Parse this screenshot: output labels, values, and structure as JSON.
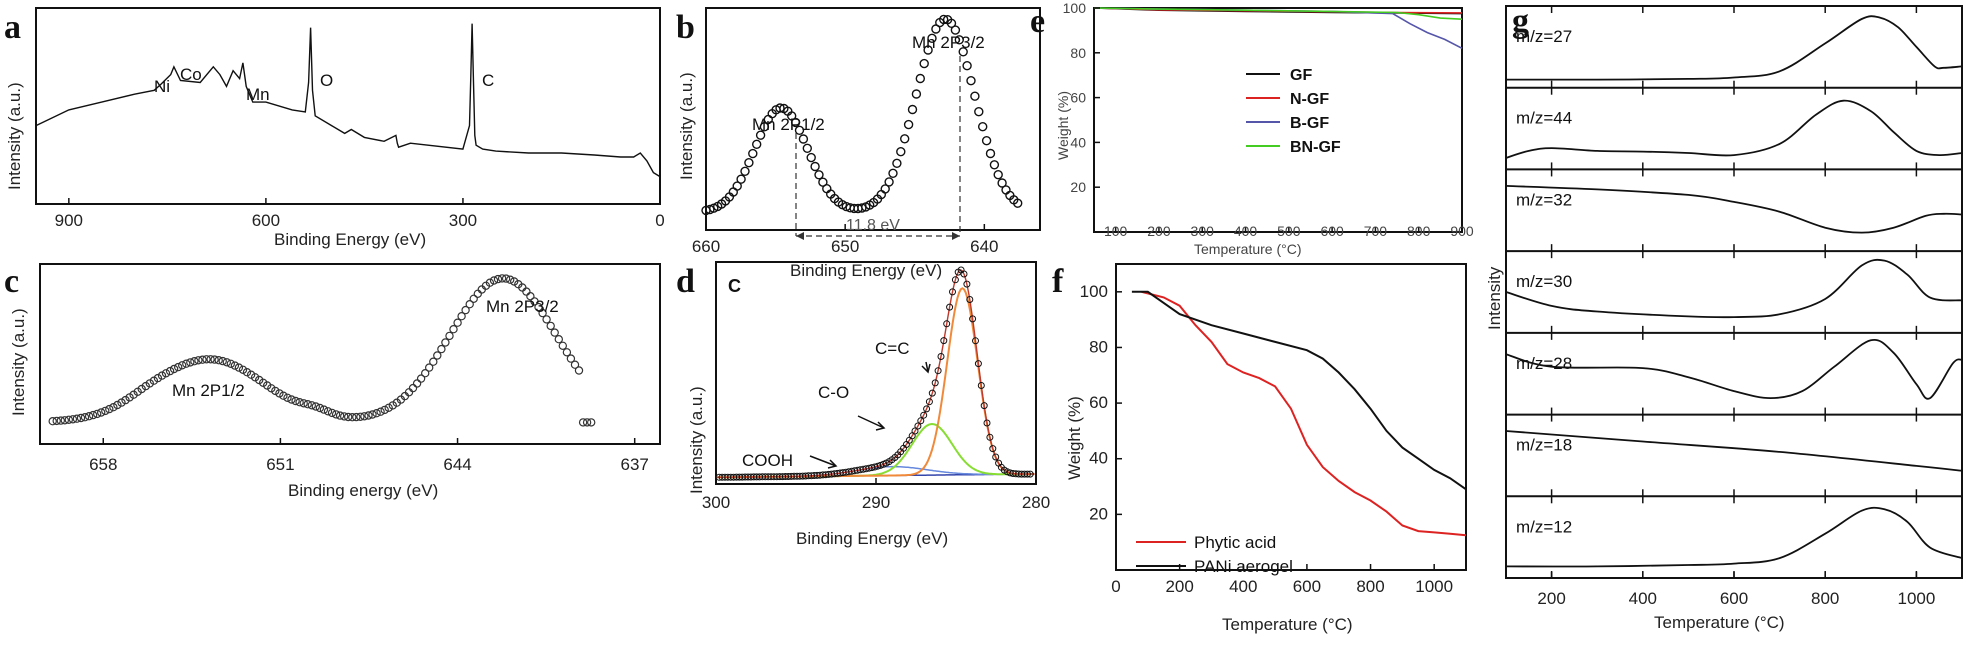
{
  "panels": {
    "a": {
      "letter": "a",
      "ylabel": "Intensity (a.u.)",
      "xlabel": "Binding Energy (eV)",
      "xticks": [
        "900",
        "600",
        "300",
        "0"
      ],
      "annotations": [
        "Ni",
        "Co",
        "Mn",
        "O",
        "C"
      ]
    },
    "b": {
      "letter": "b",
      "ylabel": "Intensity (a.u.)",
      "xlabel": "Binding Energy (eV)",
      "xticks": [
        "660",
        "650",
        "640"
      ],
      "peak1": "Mn 2P1/2",
      "peak2": "Mn 2P3/2",
      "split": "11.8 eV"
    },
    "c": {
      "letter": "c",
      "ylabel": "Intensity (a.u.)",
      "xlabel": "Binding energy (eV)",
      "xticks": [
        "658",
        "651",
        "644",
        "637"
      ],
      "peak1": "Mn 2P1/2",
      "peak2": "Mn 2P3/2"
    },
    "d": {
      "letter": "d",
      "ylabel": "Intensity (a.u.)",
      "xlabel": "Binding Energy (eV)",
      "xticks": [
        "300",
        "290",
        "280"
      ],
      "corner": "C",
      "labels": [
        "C=C",
        "C-O",
        "COOH"
      ]
    },
    "e": {
      "letter": "e",
      "ylabel": "Weight (%)",
      "xlabel": "Temperature (°C)",
      "xticks": [
        "100",
        "200",
        "300",
        "400",
        "500",
        "600",
        "700",
        "800",
        "900"
      ],
      "yticks": [
        "20",
        "40",
        "60",
        "80",
        "100"
      ],
      "legend": [
        "GF",
        "N-GF",
        "B-GF",
        "BN-GF"
      ]
    },
    "f": {
      "letter": "f",
      "ylabel": "Weight (%)",
      "xlabel": "Temperature (°C)",
      "xticks": [
        "0",
        "200",
        "400",
        "600",
        "800",
        "1000"
      ],
      "yticks": [
        "20",
        "40",
        "60",
        "80",
        "100"
      ],
      "legend": [
        "Phytic acid",
        "PANi aerogel"
      ]
    },
    "g": {
      "letter": "g",
      "ylabel": "Intensity",
      "xlabel": "Temperature (°C)",
      "xticks": [
        "200",
        "400",
        "600",
        "800",
        "1000"
      ],
      "rows": [
        "m/z=27",
        "m/z=44",
        "m/z=32",
        "m/z=30",
        "m/z=28",
        "m/z=18",
        "m/z=12"
      ]
    }
  },
  "chart_data": [
    {
      "id": "a",
      "type": "line",
      "xlabel": "Binding Energy (eV)",
      "ylabel": "Intensity (a.u.)",
      "xlim": [
        950,
        0
      ],
      "ylim": [
        0,
        100
      ],
      "x": [
        950,
        900,
        850,
        800,
        770,
        760,
        745,
        740,
        730,
        700,
        680,
        670,
        660,
        650,
        640,
        635,
        630,
        620,
        600,
        560,
        540,
        535,
        532,
        529,
        525,
        500,
        480,
        470,
        450,
        420,
        402,
        400,
        398,
        380,
        300,
        290,
        288,
        286,
        284,
        282,
        280,
        270,
        250,
        200,
        150,
        100,
        60,
        40,
        30,
        20,
        10,
        0
      ],
      "y": [
        40,
        48,
        52,
        56,
        58,
        61,
        66,
        70,
        63,
        62,
        70,
        66,
        60,
        68,
        64,
        72,
        60,
        52,
        52,
        48,
        47,
        62,
        90,
        58,
        45,
        40,
        36,
        38,
        34,
        32,
        35,
        31,
        29,
        31,
        28,
        40,
        65,
        92,
        62,
        35,
        30,
        28,
        27,
        26,
        26,
        25,
        24,
        24,
        26,
        22,
        16,
        14
      ]
    },
    {
      "id": "b",
      "type": "scatter",
      "xlabel": "Binding Energy (eV)",
      "ylabel": "Intensity (a.u.)",
      "xlim": [
        660,
        636
      ],
      "ylim": [
        0,
        100
      ],
      "peaks": [
        {
          "label": "Mn 2P1/2",
          "x": 654.6,
          "y": 51
        },
        {
          "label": "Mn 2P3/2",
          "x": 642.8,
          "y": 90
        }
      ],
      "splitting_eV": 11.8
    },
    {
      "id": "c",
      "type": "scatter",
      "xlabel": "Binding energy (eV)",
      "ylabel": "Intensity (a.u.)",
      "xlim": [
        660.5,
        636
      ],
      "ylim": [
        0,
        100
      ],
      "peaks": [
        {
          "label": "Mn 2P1/2",
          "x": 653.8,
          "y": 52
        },
        {
          "label": "Mn 2P3/2",
          "x": 642.2,
          "y": 97
        }
      ]
    },
    {
      "id": "d",
      "type": "line",
      "xlabel": "Binding Energy (eV)",
      "ylabel": "Intensity (a.u.)",
      "xlim": [
        300,
        280
      ],
      "ylim": [
        0,
        100
      ],
      "series": [
        {
          "name": "C=C",
          "center": 284.6,
          "height": 88
        },
        {
          "name": "C-O",
          "center": 286.5,
          "height": 25
        },
        {
          "name": "COOH",
          "center": 289.0,
          "height": 4
        }
      ]
    },
    {
      "id": "e",
      "type": "line",
      "xlabel": "Temperature (°C)",
      "ylabel": "Weight (%)",
      "xlim": [
        50,
        900
      ],
      "ylim": [
        0,
        100
      ],
      "series": [
        {
          "name": "GF",
          "color": "#111111",
          "x": [
            50,
            200,
            400,
            600,
            750,
            900
          ],
          "y": [
            100,
            99,
            98.5,
            98,
            97.8,
            97.5
          ]
        },
        {
          "name": "N-GF",
          "color": "#dd2222",
          "x": [
            50,
            200,
            400,
            600,
            750,
            900
          ],
          "y": [
            100,
            99.2,
            98.8,
            98.3,
            98,
            97.8
          ]
        },
        {
          "name": "B-GF",
          "color": "#5555aa",
          "x": [
            50,
            200,
            400,
            600,
            740,
            780,
            820,
            860,
            900
          ],
          "y": [
            100,
            99.5,
            99,
            98.5,
            97.5,
            93,
            89,
            86,
            82
          ]
        },
        {
          "name": "BN-GF",
          "color": "#44cc22",
          "x": [
            50,
            200,
            400,
            600,
            750,
            800,
            850,
            900
          ],
          "y": [
            100,
            99.5,
            99,
            98.5,
            98,
            97,
            95.5,
            95
          ]
        }
      ]
    },
    {
      "id": "f",
      "type": "line",
      "xlabel": "Temperature (°C)",
      "ylabel": "Weight (%)",
      "xlim": [
        0,
        1100
      ],
      "ylim": [
        0,
        110
      ],
      "series": [
        {
          "name": "Phytic acid",
          "color": "#dd2222",
          "x": [
            80,
            150,
            200,
            250,
            300,
            350,
            400,
            450,
            500,
            550,
            600,
            650,
            700,
            750,
            800,
            850,
            900,
            950,
            1000,
            1050,
            1100
          ],
          "y": [
            100,
            98,
            95,
            88,
            82,
            74,
            71,
            69,
            66,
            58,
            45,
            37,
            32,
            28,
            25,
            21,
            16,
            14,
            13.5,
            13,
            12.5
          ]
        },
        {
          "name": "PANi aerogel",
          "color": "#111111",
          "x": [
            50,
            100,
            150,
            200,
            300,
            400,
            500,
            600,
            650,
            700,
            750,
            800,
            850,
            900,
            950,
            1000,
            1050,
            1100
          ],
          "y": [
            100,
            100,
            96,
            92,
            88,
            85,
            82,
            79,
            76,
            71,
            65,
            58,
            50,
            44,
            40,
            36,
            33,
            29
          ]
        }
      ]
    },
    {
      "id": "g",
      "type": "line",
      "xlabel": "Temperature (°C)",
      "ylabel": "Intensity",
      "xlim": [
        100,
        1100
      ],
      "series": [
        {
          "name": "m/z=27",
          "x": [
            100,
            300,
            500,
            600,
            700,
            800,
            880,
            920,
            960,
            1000,
            1040,
            1060,
            1100
          ],
          "y": [
            3,
            3,
            4,
            6,
            15,
            55,
            90,
            92,
            78,
            50,
            22,
            20,
            22
          ]
        },
        {
          "name": "m/z=44",
          "x": [
            100,
            150,
            200,
            300,
            400,
            500,
            600,
            700,
            780,
            840,
            900,
            950,
            1000,
            1050,
            1100
          ],
          "y": [
            8,
            18,
            22,
            18,
            17,
            15,
            12,
            28,
            70,
            90,
            75,
            45,
            18,
            12,
            15
          ]
        },
        {
          "name": "m/z=32",
          "x": [
            100,
            300,
            500,
            600,
            700,
            800,
            880,
            950,
            1020,
            1060,
            1100
          ],
          "y": [
            85,
            80,
            72,
            62,
            48,
            25,
            18,
            25,
            42,
            45,
            44
          ]
        },
        {
          "name": "m/z=30",
          "x": [
            100,
            200,
            300,
            500,
            600,
            700,
            800,
            880,
            930,
            980,
            1030,
            1100
          ],
          "y": [
            50,
            30,
            22,
            15,
            14,
            18,
            40,
            88,
            95,
            75,
            42,
            38
          ]
        },
        {
          "name": "m/z=28",
          "x": [
            100,
            200,
            400,
            500,
            600,
            680,
            750,
            820,
            900,
            950,
            1000,
            1030,
            1080,
            1100
          ],
          "y": [
            78,
            60,
            58,
            45,
            25,
            15,
            25,
            60,
            98,
            80,
            35,
            15,
            65,
            70
          ]
        },
        {
          "name": "m/z=18",
          "x": [
            100,
            400,
            700,
            1000,
            1100
          ],
          "y": [
            85,
            70,
            55,
            35,
            28
          ]
        },
        {
          "name": "m/z=12",
          "x": [
            100,
            300,
            500,
            600,
            700,
            800,
            880,
            930,
            980,
            1030,
            1100
          ],
          "y": [
            8,
            8,
            10,
            12,
            20,
            55,
            88,
            90,
            72,
            35,
            20
          ]
        }
      ]
    }
  ]
}
